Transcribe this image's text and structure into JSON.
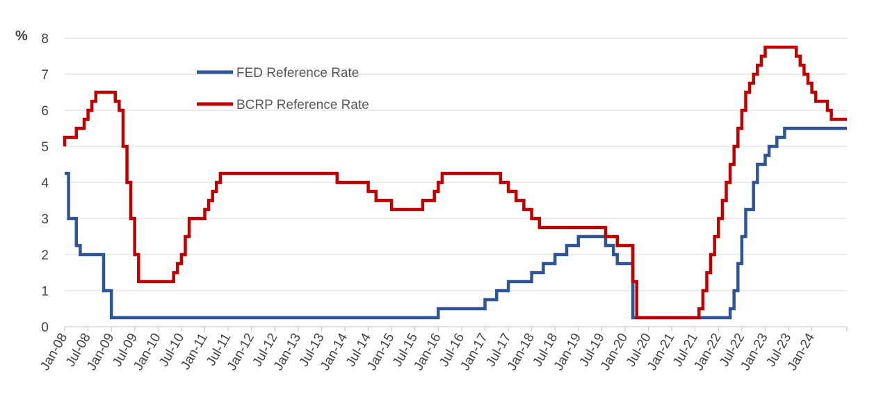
{
  "chart_data": {
    "type": "line",
    "step": true,
    "ylabel": "%",
    "ylim": [
      0,
      8
    ],
    "yticks": [
      "0",
      "1",
      "2",
      "3",
      "4",
      "5",
      "6",
      "7",
      "8"
    ],
    "x_range": [
      "2008-01",
      "2024-10"
    ],
    "x_tick_labels": [
      "Jan-08",
      "Jul-08",
      "Jan-09",
      "Jul-09",
      "Jan-10",
      "Jul-10",
      "Jan-11",
      "Jul-11",
      "Jan-12",
      "Jul-12",
      "Jan-13",
      "Jul-13",
      "Jan-14",
      "Jul-14",
      "Jan-15",
      "Jul-15",
      "Jan-16",
      "Jul-16",
      "Jan-17",
      "Jul-17",
      "Jan-18",
      "Jul-18",
      "Jan-19",
      "Jul-19",
      "Jan-20",
      "Jul-20",
      "Jan-21",
      "Jul-21",
      "Jan-22",
      "Jul-22",
      "Jan-23",
      "Jul-23",
      "Jan-24"
    ],
    "grid": true,
    "legend_position": "top-left-inside",
    "series": [
      {
        "name": "FED Reference Rate",
        "color": "#2f5597",
        "points": [
          [
            "2008-01",
            4.25
          ],
          [
            "2008-02",
            3.0
          ],
          [
            "2008-04",
            2.25
          ],
          [
            "2008-05",
            2.0
          ],
          [
            "2008-11",
            1.0
          ],
          [
            "2009-01",
            0.25
          ],
          [
            "2016-01",
            0.5
          ],
          [
            "2017-01",
            0.75
          ],
          [
            "2017-04",
            1.0
          ],
          [
            "2017-07",
            1.25
          ],
          [
            "2018-01",
            1.5
          ],
          [
            "2018-04",
            1.75
          ],
          [
            "2018-07",
            2.0
          ],
          [
            "2018-10",
            2.25
          ],
          [
            "2019-01",
            2.5
          ],
          [
            "2019-08",
            2.25
          ],
          [
            "2019-10",
            2.0
          ],
          [
            "2019-11",
            1.75
          ],
          [
            "2020-03",
            0.25
          ],
          [
            "2022-04",
            0.5
          ],
          [
            "2022-05",
            1.0
          ],
          [
            "2022-06",
            1.75
          ],
          [
            "2022-07",
            2.5
          ],
          [
            "2022-08",
            3.25
          ],
          [
            "2022-10",
            4.0
          ],
          [
            "2022-11",
            4.5
          ],
          [
            "2023-01",
            4.75
          ],
          [
            "2023-02",
            5.0
          ],
          [
            "2023-04",
            5.25
          ],
          [
            "2023-06",
            5.5
          ],
          [
            "2024-10",
            5.5
          ]
        ]
      },
      {
        "name": "BCRP Reference Rate",
        "color": "#c00000",
        "points": [
          [
            "2008-01",
            5.0
          ],
          [
            "2008-01",
            5.25
          ],
          [
            "2008-04",
            5.5
          ],
          [
            "2008-06",
            5.75
          ],
          [
            "2008-07",
            6.0
          ],
          [
            "2008-08",
            6.25
          ],
          [
            "2008-09",
            6.5
          ],
          [
            "2009-02",
            6.25
          ],
          [
            "2009-03",
            6.0
          ],
          [
            "2009-04",
            5.0
          ],
          [
            "2009-05",
            4.0
          ],
          [
            "2009-06",
            3.0
          ],
          [
            "2009-07",
            2.0
          ],
          [
            "2009-08",
            1.25
          ],
          [
            "2010-05",
            1.5
          ],
          [
            "2010-06",
            1.75
          ],
          [
            "2010-07",
            2.0
          ],
          [
            "2010-08",
            2.5
          ],
          [
            "2010-09",
            3.0
          ],
          [
            "2011-01",
            3.25
          ],
          [
            "2011-02",
            3.5
          ],
          [
            "2011-03",
            3.75
          ],
          [
            "2011-04",
            4.0
          ],
          [
            "2011-05",
            4.25
          ],
          [
            "2013-11",
            4.0
          ],
          [
            "2014-07",
            3.75
          ],
          [
            "2014-09",
            3.5
          ],
          [
            "2015-01",
            3.25
          ],
          [
            "2015-09",
            3.5
          ],
          [
            "2015-12",
            3.75
          ],
          [
            "2016-01",
            4.0
          ],
          [
            "2016-02",
            4.25
          ],
          [
            "2017-05",
            4.0
          ],
          [
            "2017-07",
            3.75
          ],
          [
            "2017-09",
            3.5
          ],
          [
            "2017-11",
            3.25
          ],
          [
            "2018-01",
            3.0
          ],
          [
            "2018-03",
            2.75
          ],
          [
            "2019-08",
            2.5
          ],
          [
            "2019-11",
            2.25
          ],
          [
            "2020-03",
            1.25
          ],
          [
            "2020-04",
            0.25
          ],
          [
            "2021-08",
            0.5
          ],
          [
            "2021-09",
            1.0
          ],
          [
            "2021-10",
            1.5
          ],
          [
            "2021-11",
            2.0
          ],
          [
            "2021-12",
            2.5
          ],
          [
            "2022-01",
            3.0
          ],
          [
            "2022-02",
            3.5
          ],
          [
            "2022-03",
            4.0
          ],
          [
            "2022-04",
            4.5
          ],
          [
            "2022-05",
            5.0
          ],
          [
            "2022-06",
            5.5
          ],
          [
            "2022-07",
            6.0
          ],
          [
            "2022-08",
            6.5
          ],
          [
            "2022-09",
            6.75
          ],
          [
            "2022-10",
            7.0
          ],
          [
            "2022-11",
            7.25
          ],
          [
            "2022-12",
            7.5
          ],
          [
            "2023-01",
            7.75
          ],
          [
            "2023-09",
            7.5
          ],
          [
            "2023-10",
            7.25
          ],
          [
            "2023-11",
            7.0
          ],
          [
            "2023-12",
            6.75
          ],
          [
            "2024-01",
            6.5
          ],
          [
            "2024-02",
            6.25
          ],
          [
            "2024-04",
            6.25
          ],
          [
            "2024-05",
            6.0
          ],
          [
            "2024-06",
            5.75
          ],
          [
            "2024-10",
            5.75
          ]
        ]
      }
    ]
  }
}
